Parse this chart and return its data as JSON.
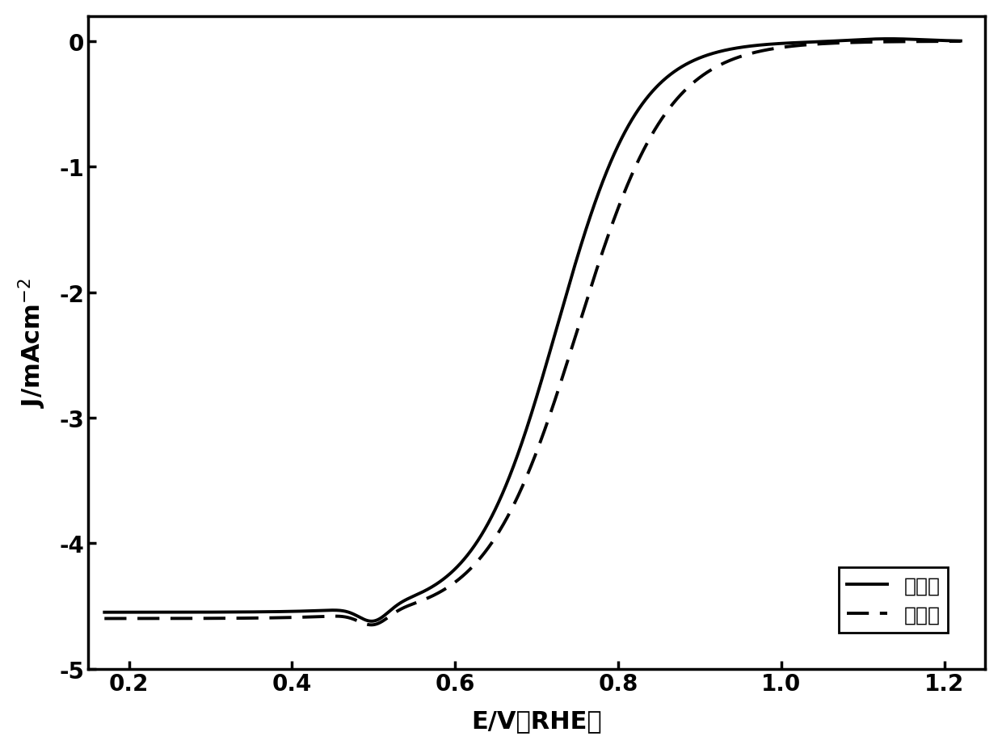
{
  "xlabel": "E/V（RHE）",
  "ylabel": "J/mAcm$^{-2}$",
  "xlim": [
    0.15,
    1.25
  ],
  "ylim": [
    -5,
    0.2
  ],
  "xticks": [
    0.2,
    0.4,
    0.6,
    0.8,
    1.0,
    1.2
  ],
  "xtick_labels": [
    "0.2",
    "0.4",
    "0.6",
    "0.8",
    "1.0",
    "1.2"
  ],
  "yticks": [
    0,
    -1,
    -2,
    -3,
    -4,
    -5
  ],
  "ytick_labels": [
    "0",
    "-1",
    "-2",
    "-3",
    "-4",
    "-5"
  ],
  "legend_solid": "对比例",
  "legend_dashed": "实施例",
  "background_color": "#ffffff",
  "line_color": "#000000",
  "linewidth": 2.8,
  "fontsize_label": 22,
  "fontsize_tick": 20,
  "fontsize_legend": 18
}
